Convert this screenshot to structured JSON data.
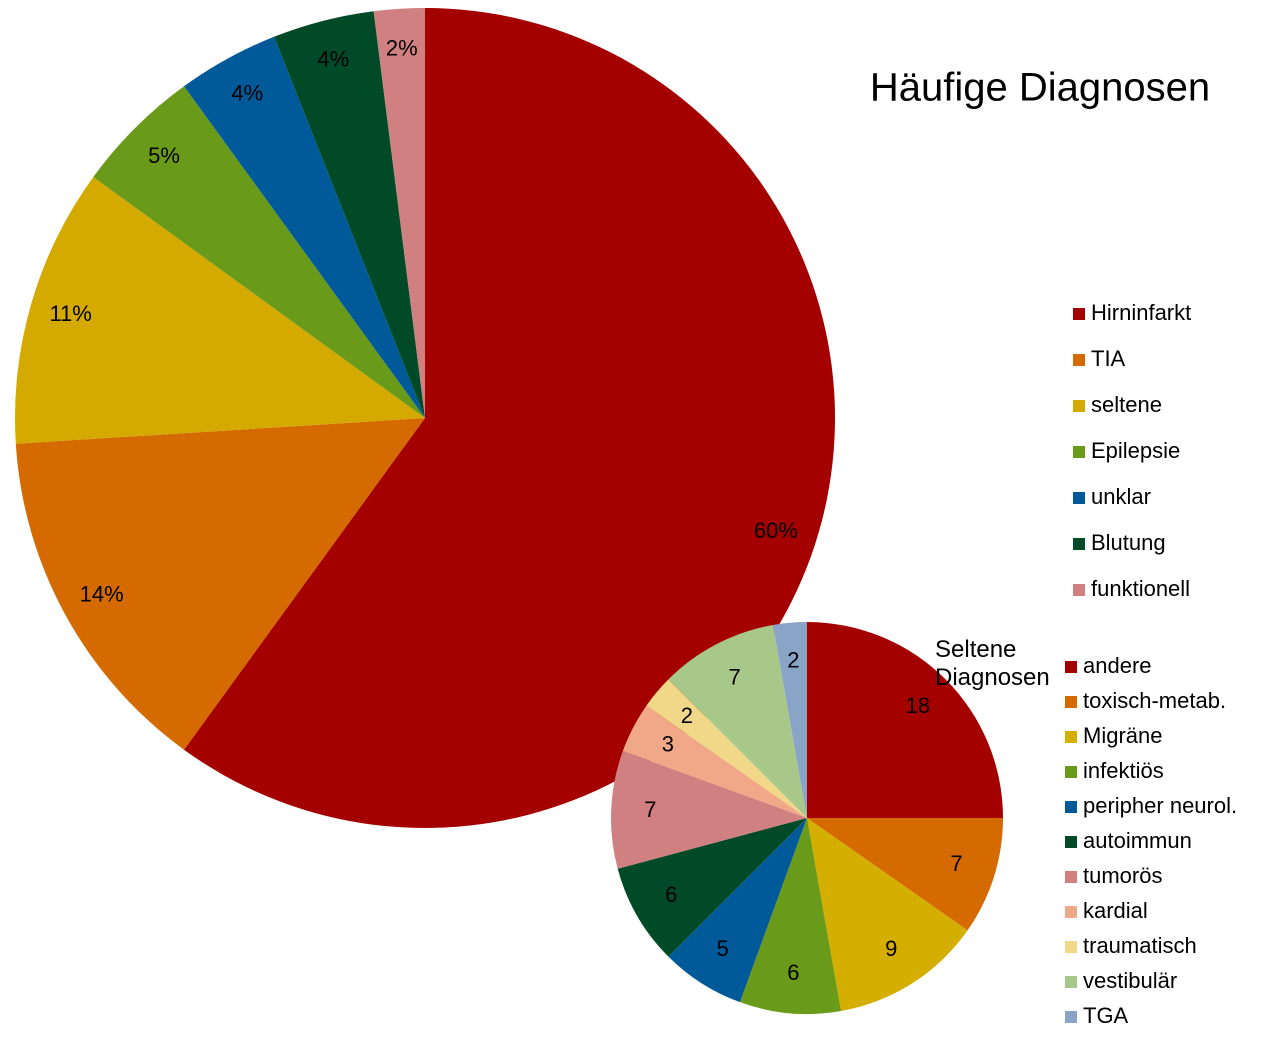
{
  "chart_data": [
    {
      "type": "pie",
      "title": "Häufige Diagnosen",
      "categories": [
        "Hirninfarkt",
        "TIA",
        "seltene",
        "Epilepsie",
        "unklar",
        "Blutung",
        "funktionell"
      ],
      "values": [
        60,
        14,
        11,
        5,
        4,
        4,
        2
      ],
      "value_labels": [
        "60%",
        "14%",
        "11%",
        "5%",
        "4%",
        "4%",
        "2%"
      ],
      "colors": [
        "#a50000",
        "#d46a00",
        "#d4aa00",
        "#6a9a1a",
        "#005a9a",
        "#004a28",
        "#d08080"
      ]
    },
    {
      "type": "pie",
      "title": "Seltene Diagnosen",
      "categories": [
        "andere",
        "toxisch-metab.",
        "Migräne",
        "infektiös",
        "peripher neurol.",
        "autoimmun",
        "tumorös",
        "kardial",
        "traumatisch",
        "vestibulär",
        "TGA"
      ],
      "values": [
        18,
        7,
        9,
        6,
        5,
        6,
        7,
        3,
        2,
        7,
        2
      ],
      "colors": [
        "#a50000",
        "#d46a00",
        "#d4ae00",
        "#6a9a1a",
        "#005a9a",
        "#004a28",
        "#d08080",
        "#f0a888",
        "#f0d888",
        "#a8c88a",
        "#8aa4c8"
      ]
    }
  ]
}
